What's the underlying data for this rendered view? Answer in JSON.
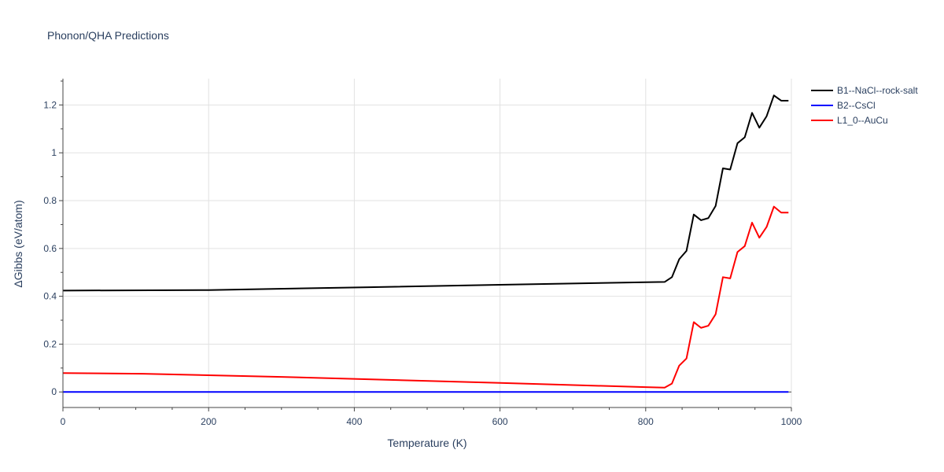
{
  "chart_data": {
    "type": "line",
    "title": "Phonon/QHA Predictions",
    "xlabel": "Temperature (K)",
    "ylabel": "ΔGibbs (eV/atom)",
    "xlim": [
      0,
      1000
    ],
    "ylim": [
      -0.065,
      1.31
    ],
    "x_ticks": [
      0,
      200,
      400,
      600,
      800,
      1000
    ],
    "x_tick_labels": [
      "0",
      "200",
      "400",
      "600",
      "800",
      "1000"
    ],
    "y_ticks": [
      0,
      0.2,
      0.4,
      0.6,
      0.8,
      1,
      1.2
    ],
    "y_tick_labels": [
      "0",
      "0.2",
      "0.4",
      "0.6",
      "0.8",
      "1",
      "1.2"
    ],
    "grid": true,
    "legend_position": "top-right-outside",
    "series": [
      {
        "name": "B1--NaCl--rock-salt",
        "color": "#000000",
        "x": [
          0,
          200,
          420,
          600,
          800,
          826,
          836,
          846,
          856,
          866,
          876,
          886,
          896,
          906,
          916,
          926,
          936,
          946,
          956,
          966,
          976,
          986,
          996
        ],
        "y": [
          0.424,
          0.426,
          0.438,
          0.448,
          0.459,
          0.46,
          0.48,
          0.555,
          0.59,
          0.742,
          0.718,
          0.727,
          0.778,
          0.935,
          0.93,
          1.04,
          1.065,
          1.167,
          1.105,
          1.153,
          1.24,
          1.218,
          1.218
        ]
      },
      {
        "name": "B2--CsCl",
        "color": "#0000ff",
        "x": [
          0,
          996
        ],
        "y": [
          0,
          0
        ]
      },
      {
        "name": "L1_0--AuCu",
        "color": "#ff0000",
        "x": [
          0,
          110,
          300,
          600,
          800,
          826,
          836,
          846,
          856,
          866,
          876,
          886,
          896,
          906,
          916,
          926,
          936,
          946,
          956,
          966,
          976,
          986,
          996
        ],
        "y": [
          0.079,
          0.076,
          0.063,
          0.038,
          0.02,
          0.018,
          0.035,
          0.11,
          0.14,
          0.292,
          0.268,
          0.277,
          0.325,
          0.48,
          0.475,
          0.585,
          0.61,
          0.708,
          0.645,
          0.69,
          0.775,
          0.75,
          0.75
        ]
      }
    ]
  }
}
